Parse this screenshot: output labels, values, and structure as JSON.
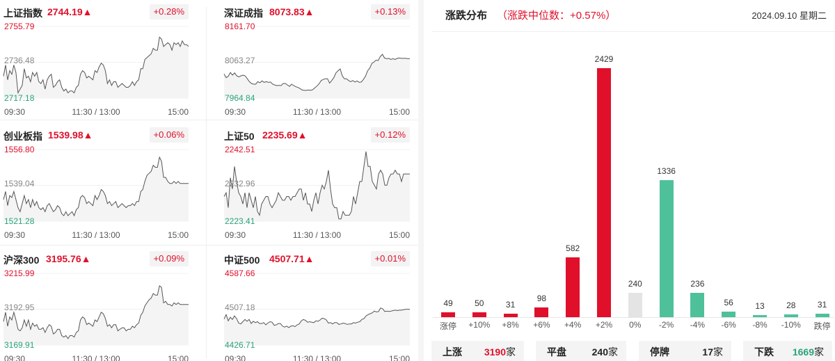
{
  "indices": [
    {
      "id": "sh",
      "name": "上证指数",
      "value": "2744.19▲",
      "change": "+0.28%",
      "high": "2755.79",
      "mid": "2736.48",
      "low": "2717.18",
      "line": [
        2729,
        2735,
        2727,
        2732,
        2730,
        2735,
        2731,
        2720,
        2722,
        2724,
        2733,
        2728,
        2729,
        2726,
        2731,
        2729,
        2731,
        2726,
        2725,
        2727,
        2722,
        2727,
        2729,
        2730,
        2723,
        2724,
        2726,
        2727,
        2723,
        2721,
        2722,
        2720,
        2721,
        2721,
        2720,
        2723,
        2724,
        2730,
        2732,
        2731,
        2728,
        2729,
        2728,
        2727,
        2732,
        2731,
        2734,
        2736,
        2735,
        2732,
        2725,
        2727,
        2724,
        2726,
        2726,
        2723,
        2724,
        2725,
        2724,
        2723,
        2723,
        2724,
        2726,
        2724,
        2726,
        2727,
        2733,
        2733,
        2738,
        2739,
        2740,
        2741,
        2744,
        2743,
        2743,
        2750,
        2749,
        2745,
        2746,
        2747,
        2746,
        2743,
        2747,
        2746,
        2747,
        2745,
        2748,
        2746,
        2746,
        2745
      ],
      "line_color": "#555555"
    },
    {
      "id": "sz",
      "name": "深证成指",
      "value": "8073.83▲",
      "change": "+0.13%",
      "high": "8161.70",
      "mid": "8063.27",
      "low": "7964.84",
      "line": [
        8031,
        8021,
        8025,
        8035,
        8028,
        8034,
        8026,
        8023,
        8026,
        8028,
        8026,
        8018,
        8010,
        8005,
        8003,
        8003,
        8010,
        8007,
        8012,
        8008,
        8010,
        8008,
        8009,
        8003,
        8001,
        7999,
        8000,
        7999,
        8005,
        8005,
        8001,
        7997,
        8003,
        7999,
        7996,
        7994,
        7991,
        7987,
        7986,
        7986,
        7987,
        7986,
        7988,
        7993,
        7998,
        8004,
        8013,
        8016,
        8018,
        8018,
        8006,
        8013,
        8021,
        8034,
        8040,
        8045,
        8026,
        8018,
        8018,
        8013,
        8010,
        8013,
        8009,
        8012,
        8008,
        8009,
        8016,
        8025,
        8040,
        8047,
        8060,
        8064,
        8069,
        8068,
        8079,
        8085,
        8075,
        8073,
        8074,
        8071,
        8073,
        8071,
        8074,
        8075,
        8074,
        8074,
        8074,
        8073,
        8073
      ],
      "line_color": "#555555"
    },
    {
      "id": "cyb",
      "name": "创业板指",
      "value": "1539.98▲",
      "change": "+0.06%",
      "high": "1556.80",
      "mid": "1539.04",
      "low": "1521.28",
      "line": [
        1532,
        1536,
        1529,
        1534,
        1533,
        1536,
        1532,
        1528,
        1526,
        1530,
        1534,
        1530,
        1532,
        1528,
        1532,
        1529,
        1531,
        1528,
        1527,
        1528,
        1526,
        1529,
        1530,
        1528,
        1526,
        1527,
        1529,
        1528,
        1525,
        1524,
        1526,
        1524,
        1525,
        1526,
        1524,
        1527,
        1528,
        1533,
        1534,
        1533,
        1530,
        1531,
        1530,
        1529,
        1534,
        1532,
        1534,
        1537,
        1536,
        1534,
        1530,
        1531,
        1529,
        1530,
        1531,
        1528,
        1529,
        1530,
        1529,
        1528,
        1529,
        1529,
        1530,
        1529,
        1531,
        1531,
        1536,
        1537,
        1541,
        1544,
        1545,
        1546,
        1549,
        1548,
        1548,
        1553,
        1551,
        1543,
        1543,
        1541,
        1540,
        1540,
        1541,
        1540,
        1541,
        1540,
        1540,
        1540,
        1540,
        1540
      ],
      "line_color": "#555555"
    },
    {
      "id": "sz50",
      "name": "上证50",
      "value": "2235.69▲",
      "change": "+0.12%",
      "high": "2242.51",
      "mid": "2232.96",
      "low": "2223.41",
      "line": [
        2230,
        2231,
        2227,
        2235,
        2232,
        2238,
        2234,
        2231,
        2230,
        2228,
        2231,
        2227,
        2231,
        2229,
        2227,
        2230,
        2226,
        2225,
        2228,
        2229,
        2230,
        2230,
        2228,
        2227,
        2228,
        2229,
        2231,
        2230,
        2229,
        2229,
        2230,
        2230,
        2229,
        2230,
        2230,
        2231,
        2232,
        2232,
        2229,
        2231,
        2228,
        2228,
        2226,
        2229,
        2231,
        2228,
        2231,
        2233,
        2232,
        2234,
        2237,
        2232,
        2228,
        2227,
        2227,
        2224,
        2224,
        2226,
        2225,
        2225,
        2225,
        2226,
        2230,
        2228,
        2231,
        2234,
        2234,
        2238,
        2242,
        2238,
        2238,
        2234,
        2233,
        2232,
        2236,
        2237,
        2236,
        2233,
        2233,
        2235,
        2236,
        2236,
        2237,
        2236,
        2236,
        2234,
        2236,
        2236,
        2236,
        2236
      ],
      "line_color": "#555555"
    },
    {
      "id": "hs300",
      "name": "沪深300",
      "value": "3195.76▲",
      "change": "+0.09%",
      "high": "3215.99",
      "mid": "3192.95",
      "low": "3169.91",
      "line": [
        3185,
        3191,
        3182,
        3188,
        3186,
        3191,
        3186,
        3180,
        3179,
        3181,
        3186,
        3182,
        3186,
        3180,
        3184,
        3182,
        3183,
        3180,
        3180,
        3181,
        3178,
        3181,
        3183,
        3182,
        3177,
        3178,
        3180,
        3180,
        3176,
        3175,
        3176,
        3174,
        3176,
        3176,
        3175,
        3178,
        3179,
        3186,
        3188,
        3187,
        3183,
        3184,
        3183,
        3182,
        3186,
        3185,
        3188,
        3191,
        3190,
        3187,
        3182,
        3183,
        3181,
        3183,
        3183,
        3179,
        3180,
        3181,
        3181,
        3179,
        3180,
        3180,
        3182,
        3181,
        3183,
        3184,
        3189,
        3191,
        3195,
        3197,
        3199,
        3200,
        3203,
        3202,
        3202,
        3208,
        3207,
        3197,
        3198,
        3196,
        3196,
        3195,
        3197,
        3196,
        3197,
        3196,
        3196,
        3196,
        3196,
        3196
      ],
      "line_color": "#555555"
    },
    {
      "id": "zz500",
      "name": "中证500",
      "value": "4507.71▲",
      "change": "+0.01%",
      "high": "4587.66",
      "mid": "4507.18",
      "low": "4426.71",
      "line": [
        4485,
        4495,
        4481,
        4489,
        4484,
        4492,
        4486,
        4476,
        4474,
        4479,
        4484,
        4480,
        4484,
        4475,
        4480,
        4477,
        4479,
        4475,
        4475,
        4477,
        4472,
        4476,
        4479,
        4478,
        4471,
        4472,
        4475,
        4475,
        4469,
        4467,
        4469,
        4466,
        4469,
        4470,
        4468,
        4472,
        4474,
        4481,
        4484,
        4482,
        4478,
        4479,
        4478,
        4477,
        4481,
        4480,
        4483,
        4487,
        4486,
        4483,
        4476,
        4477,
        4474,
        4477,
        4477,
        4473,
        4474,
        4476,
        4475,
        4473,
        4474,
        4474,
        4477,
        4476,
        4478,
        4479,
        4484,
        4486,
        4492,
        4495,
        4497,
        4499,
        4503,
        4501,
        4502,
        4510,
        4508,
        4502,
        4503,
        4502,
        4503,
        4504,
        4505,
        4504,
        4505,
        4505,
        4506,
        4507,
        4507,
        4507
      ],
      "line_color": "#555555"
    }
  ],
  "time_labels": {
    "start": "09:30",
    "mid": "11:30 / 13:00",
    "end": "15:00"
  },
  "distribution": {
    "title": "涨跌分布",
    "subtitle": "（涨跌中位数：+0.57%）",
    "date": "2024.09.10 星期二",
    "chart_data": {
      "type": "bar",
      "categories": [
        "涨停",
        "+10%",
        "+8%",
        "+6%",
        "+4%",
        "+2%",
        "0%",
        "-2%",
        "-4%",
        "-6%",
        "-8%",
        "-10%",
        "跌停"
      ],
      "values": [
        49,
        50,
        31,
        98,
        582,
        2429,
        240,
        1336,
        236,
        56,
        13,
        28,
        31
      ],
      "colors": [
        "#e0102b",
        "#e0102b",
        "#e0102b",
        "#e0102b",
        "#e0102b",
        "#e0102b",
        "#e4e4e4",
        "#4fc19a",
        "#4fc19a",
        "#4fc19a",
        "#4fc19a",
        "#4fc19a",
        "#4fc19a"
      ],
      "value_labels": [
        "49",
        "50",
        "31",
        "98",
        "582",
        "2429",
        "240",
        "1336",
        "236",
        "56",
        "13",
        "28",
        "31"
      ]
    },
    "summary": [
      {
        "label": "上涨",
        "value": "3190",
        "unit": "家",
        "color": "#e0102b"
      },
      {
        "label": "平盘",
        "value": "240",
        "unit": "家",
        "color": "#222222"
      },
      {
        "label": "停牌",
        "value": "17",
        "unit": "家",
        "color": "#222222"
      },
      {
        "label": "下跌",
        "value": "1669",
        "unit": "家",
        "color": "#2aa37a"
      }
    ]
  }
}
